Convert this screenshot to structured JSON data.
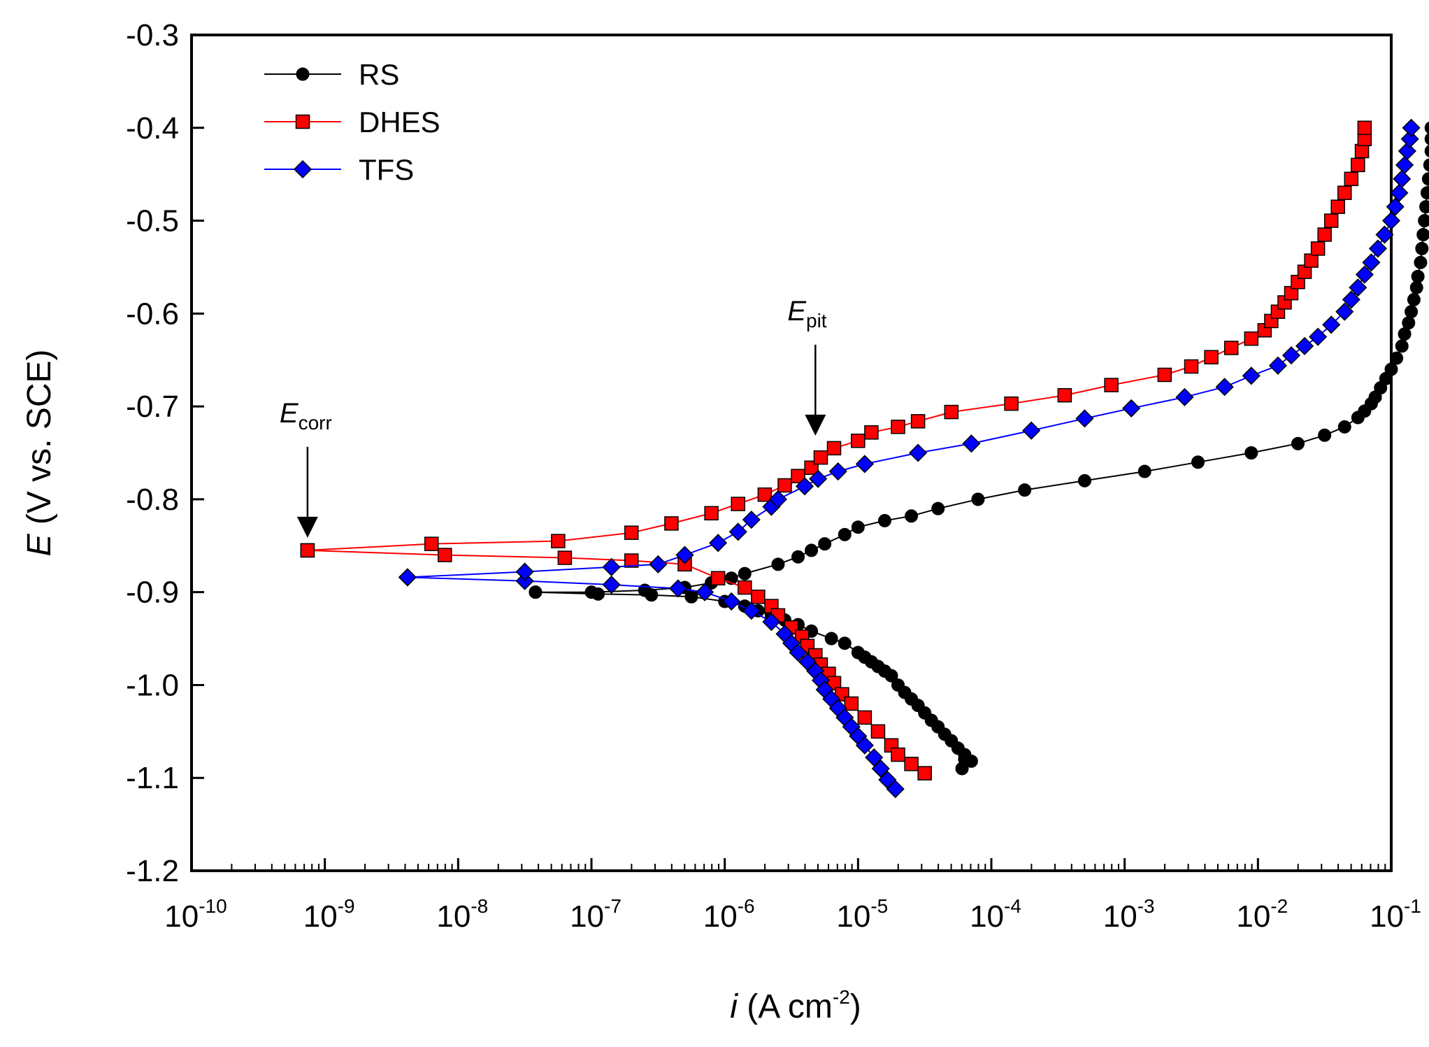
{
  "chart_data": {
    "type": "line",
    "title": "",
    "xscale": "log",
    "xlim_exponent": [
      -10,
      -1
    ],
    "ylim": [
      -1.2,
      -0.3
    ],
    "x_tick_exponents": [
      -10,
      -9,
      -8,
      -7,
      -6,
      -5,
      -4,
      -3,
      -2,
      -1
    ],
    "x_tick_base": "10",
    "y_ticks": [
      -0.3,
      -0.4,
      -0.5,
      -0.6,
      -0.7,
      -0.8,
      -0.9,
      -1.0,
      -1.1,
      -1.2
    ],
    "y_tick_labels": [
      "-0.3",
      "-0.4",
      "-0.5",
      "-0.6",
      "-0.7",
      "-0.8",
      "-0.9",
      "-1.0",
      "-1.1",
      "-1.2"
    ],
    "xlabel": {
      "italic": "i",
      "text": " (A cm",
      "sup": "-2",
      "close": ")"
    },
    "ylabel": {
      "italic": "E",
      "text": " (V vs. SCE)"
    },
    "legend_position": "top-left",
    "annotations": [
      {
        "main": "E",
        "sub": "corr",
        "x_log": -9.13,
        "y": -0.855
      },
      {
        "main": "E",
        "sub": "pit",
        "x_log": -5.32,
        "y": -0.745
      }
    ],
    "series": [
      {
        "name": "RS",
        "color": "#000000",
        "marker": "circle",
        "cathodic": [
          [
            -7.42,
            -0.9
          ],
          [
            -6.95,
            -0.902
          ],
          [
            -6.55,
            -0.903
          ],
          [
            -6.25,
            -0.905
          ],
          [
            -6.0,
            -0.91
          ],
          [
            -5.85,
            -0.915
          ],
          [
            -5.75,
            -0.92
          ],
          [
            -5.65,
            -0.925
          ],
          [
            -5.55,
            -0.93
          ],
          [
            -5.45,
            -0.935
          ],
          [
            -5.35,
            -0.942
          ],
          [
            -5.2,
            -0.95
          ],
          [
            -5.1,
            -0.955
          ],
          [
            -5.0,
            -0.965
          ],
          [
            -4.95,
            -0.97
          ],
          [
            -4.9,
            -0.975
          ],
          [
            -4.85,
            -0.98
          ],
          [
            -4.8,
            -0.985
          ],
          [
            -4.75,
            -0.99
          ],
          [
            -4.7,
            -1.0
          ],
          [
            -4.65,
            -1.008
          ],
          [
            -4.6,
            -1.015
          ],
          [
            -4.55,
            -1.022
          ],
          [
            -4.5,
            -1.03
          ],
          [
            -4.45,
            -1.038
          ],
          [
            -4.4,
            -1.045
          ],
          [
            -4.35,
            -1.053
          ],
          [
            -4.3,
            -1.06
          ],
          [
            -4.25,
            -1.068
          ],
          [
            -4.2,
            -1.075
          ],
          [
            -4.15,
            -1.082
          ],
          [
            -4.2,
            -1.08
          ],
          [
            -4.22,
            -1.09
          ]
        ],
        "anodic": [
          [
            -7.42,
            -0.9
          ],
          [
            -7.0,
            -0.9
          ],
          [
            -6.6,
            -0.898
          ],
          [
            -6.3,
            -0.895
          ],
          [
            -6.1,
            -0.89
          ],
          [
            -5.95,
            -0.885
          ],
          [
            -5.85,
            -0.88
          ],
          [
            -5.6,
            -0.87
          ],
          [
            -5.45,
            -0.862
          ],
          [
            -5.35,
            -0.855
          ],
          [
            -5.25,
            -0.848
          ],
          [
            -5.1,
            -0.838
          ],
          [
            -5.0,
            -0.83
          ],
          [
            -4.8,
            -0.823
          ],
          [
            -4.6,
            -0.818
          ],
          [
            -4.4,
            -0.81
          ],
          [
            -4.1,
            -0.8
          ],
          [
            -3.75,
            -0.79
          ],
          [
            -3.3,
            -0.78
          ],
          [
            -2.85,
            -0.77
          ],
          [
            -2.45,
            -0.76
          ],
          [
            -2.05,
            -0.75
          ],
          [
            -1.7,
            -0.74
          ],
          [
            -1.5,
            -0.731
          ],
          [
            -1.35,
            -0.722
          ],
          [
            -1.25,
            -0.712
          ],
          [
            -1.2,
            -0.705
          ],
          [
            -1.15,
            -0.697
          ],
          [
            -1.12,
            -0.69
          ],
          [
            -1.08,
            -0.68
          ],
          [
            -1.04,
            -0.67
          ],
          [
            -1.0,
            -0.66
          ],
          [
            -0.96,
            -0.648
          ],
          [
            -0.92,
            -0.635
          ],
          [
            -0.9,
            -0.622
          ],
          [
            -0.87,
            -0.61
          ],
          [
            -0.85,
            -0.598
          ],
          [
            -0.83,
            -0.585
          ],
          [
            -0.81,
            -0.572
          ],
          [
            -0.8,
            -0.56
          ],
          [
            -0.78,
            -0.545
          ],
          [
            -0.77,
            -0.53
          ],
          [
            -0.76,
            -0.515
          ],
          [
            -0.75,
            -0.5
          ],
          [
            -0.74,
            -0.485
          ],
          [
            -0.73,
            -0.47
          ],
          [
            -0.72,
            -0.455
          ],
          [
            -0.71,
            -0.44
          ],
          [
            -0.7,
            -0.425
          ],
          [
            -0.7,
            -0.412
          ],
          [
            -0.7,
            -0.4
          ]
        ]
      },
      {
        "name": "DHES",
        "color": "#ff0000",
        "marker": "square",
        "cathodic": [
          [
            -9.13,
            -0.855
          ],
          [
            -8.1,
            -0.86
          ],
          [
            -7.2,
            -0.863
          ],
          [
            -6.7,
            -0.866
          ],
          [
            -6.3,
            -0.87
          ],
          [
            -6.05,
            -0.885
          ],
          [
            -5.85,
            -0.895
          ],
          [
            -5.75,
            -0.905
          ],
          [
            -5.65,
            -0.915
          ],
          [
            -5.6,
            -0.925
          ],
          [
            -5.5,
            -0.938
          ],
          [
            -5.42,
            -0.948
          ],
          [
            -5.38,
            -0.958
          ],
          [
            -5.32,
            -0.968
          ],
          [
            -5.28,
            -0.978
          ],
          [
            -5.22,
            -0.988
          ],
          [
            -5.18,
            -0.998
          ],
          [
            -5.12,
            -1.01
          ],
          [
            -5.05,
            -1.02
          ],
          [
            -4.95,
            -1.035
          ],
          [
            -4.85,
            -1.05
          ],
          [
            -4.75,
            -1.065
          ],
          [
            -4.7,
            -1.075
          ],
          [
            -4.6,
            -1.085
          ],
          [
            -4.5,
            -1.095
          ]
        ],
        "anodic": [
          [
            -9.13,
            -0.855
          ],
          [
            -8.2,
            -0.848
          ],
          [
            -7.25,
            -0.845
          ],
          [
            -6.7,
            -0.836
          ],
          [
            -6.4,
            -0.826
          ],
          [
            -6.1,
            -0.815
          ],
          [
            -5.9,
            -0.805
          ],
          [
            -5.7,
            -0.795
          ],
          [
            -5.55,
            -0.785
          ],
          [
            -5.45,
            -0.775
          ],
          [
            -5.35,
            -0.766
          ],
          [
            -5.28,
            -0.755
          ],
          [
            -5.18,
            -0.745
          ],
          [
            -5.0,
            -0.737
          ],
          [
            -4.9,
            -0.728
          ],
          [
            -4.7,
            -0.722
          ],
          [
            -4.55,
            -0.716
          ],
          [
            -4.3,
            -0.706
          ],
          [
            -3.85,
            -0.697
          ],
          [
            -3.45,
            -0.688
          ],
          [
            -3.1,
            -0.677
          ],
          [
            -2.7,
            -0.666
          ],
          [
            -2.5,
            -0.657
          ],
          [
            -2.35,
            -0.647
          ],
          [
            -2.2,
            -0.637
          ],
          [
            -2.05,
            -0.627
          ],
          [
            -1.95,
            -0.618
          ],
          [
            -1.9,
            -0.608
          ],
          [
            -1.85,
            -0.598
          ],
          [
            -1.8,
            -0.588
          ],
          [
            -1.75,
            -0.578
          ],
          [
            -1.7,
            -0.566
          ],
          [
            -1.65,
            -0.555
          ],
          [
            -1.6,
            -0.543
          ],
          [
            -1.55,
            -0.53
          ],
          [
            -1.5,
            -0.515
          ],
          [
            -1.45,
            -0.5
          ],
          [
            -1.4,
            -0.485
          ],
          [
            -1.35,
            -0.47
          ],
          [
            -1.3,
            -0.455
          ],
          [
            -1.25,
            -0.44
          ],
          [
            -1.22,
            -0.425
          ],
          [
            -1.2,
            -0.412
          ],
          [
            -1.2,
            -0.4
          ]
        ]
      },
      {
        "name": "TFS",
        "color": "#0000ff",
        "marker": "diamond",
        "cathodic": [
          [
            -8.38,
            -0.884
          ],
          [
            -7.5,
            -0.888
          ],
          [
            -6.85,
            -0.892
          ],
          [
            -6.35,
            -0.896
          ],
          [
            -6.15,
            -0.9
          ],
          [
            -5.95,
            -0.91
          ],
          [
            -5.8,
            -0.92
          ],
          [
            -5.65,
            -0.932
          ],
          [
            -5.55,
            -0.945
          ],
          [
            -5.5,
            -0.955
          ],
          [
            -5.45,
            -0.965
          ],
          [
            -5.38,
            -0.975
          ],
          [
            -5.32,
            -0.985
          ],
          [
            -5.28,
            -0.995
          ],
          [
            -5.25,
            -1.005
          ],
          [
            -5.2,
            -1.015
          ],
          [
            -5.15,
            -1.025
          ],
          [
            -5.1,
            -1.035
          ],
          [
            -5.05,
            -1.045
          ],
          [
            -5.0,
            -1.055
          ],
          [
            -4.95,
            -1.065
          ],
          [
            -4.88,
            -1.078
          ],
          [
            -4.83,
            -1.09
          ],
          [
            -4.78,
            -1.102
          ],
          [
            -4.72,
            -1.112
          ]
        ],
        "anodic": [
          [
            -8.38,
            -0.884
          ],
          [
            -7.5,
            -0.878
          ],
          [
            -6.85,
            -0.873
          ],
          [
            -6.5,
            -0.87
          ],
          [
            -6.3,
            -0.86
          ],
          [
            -6.05,
            -0.847
          ],
          [
            -5.9,
            -0.835
          ],
          [
            -5.8,
            -0.822
          ],
          [
            -5.65,
            -0.808
          ],
          [
            -5.6,
            -0.8
          ],
          [
            -5.4,
            -0.786
          ],
          [
            -5.3,
            -0.778
          ],
          [
            -5.15,
            -0.77
          ],
          [
            -4.95,
            -0.762
          ],
          [
            -4.55,
            -0.75
          ],
          [
            -4.15,
            -0.74
          ],
          [
            -3.7,
            -0.726
          ],
          [
            -3.3,
            -0.713
          ],
          [
            -2.95,
            -0.702
          ],
          [
            -2.55,
            -0.69
          ],
          [
            -2.25,
            -0.679
          ],
          [
            -2.05,
            -0.667
          ],
          [
            -1.85,
            -0.656
          ],
          [
            -1.75,
            -0.645
          ],
          [
            -1.65,
            -0.635
          ],
          [
            -1.55,
            -0.625
          ],
          [
            -1.45,
            -0.612
          ],
          [
            -1.35,
            -0.598
          ],
          [
            -1.3,
            -0.585
          ],
          [
            -1.25,
            -0.572
          ],
          [
            -1.2,
            -0.558
          ],
          [
            -1.15,
            -0.545
          ],
          [
            -1.1,
            -0.53
          ],
          [
            -1.05,
            -0.515
          ],
          [
            -1.0,
            -0.5
          ],
          [
            -0.97,
            -0.485
          ],
          [
            -0.94,
            -0.47
          ],
          [
            -0.92,
            -0.455
          ],
          [
            -0.9,
            -0.44
          ],
          [
            -0.88,
            -0.425
          ],
          [
            -0.86,
            -0.412
          ],
          [
            -0.85,
            -0.4
          ]
        ]
      }
    ]
  }
}
